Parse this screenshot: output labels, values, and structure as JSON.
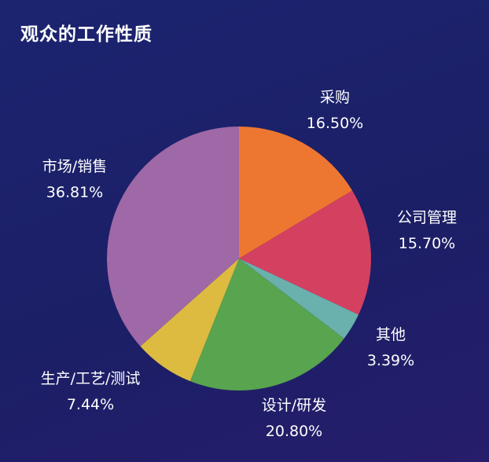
{
  "title": "观众的工作性质",
  "chart_data": {
    "type": "pie",
    "title": "观众的工作性质",
    "slices": [
      {
        "label": "采购",
        "value": 16.5,
        "display": "16.50%",
        "color": "#ed7731"
      },
      {
        "label": "公司管理",
        "value": 15.7,
        "display": "15.70%",
        "color": "#d44060"
      },
      {
        "label": "其他",
        "value": 3.39,
        "display": "3.39%",
        "color": "#6ab0ad"
      },
      {
        "label": "设计/研发",
        "value": 20.8,
        "display": "20.80%",
        "color": "#58a44f"
      },
      {
        "label": "生产/工艺/测试",
        "value": 7.44,
        "display": "7.44%",
        "color": "#dcbb40"
      },
      {
        "label": "市场/销售",
        "value": 36.81,
        "display": "36.81%",
        "color": "#9f68a6"
      }
    ]
  }
}
